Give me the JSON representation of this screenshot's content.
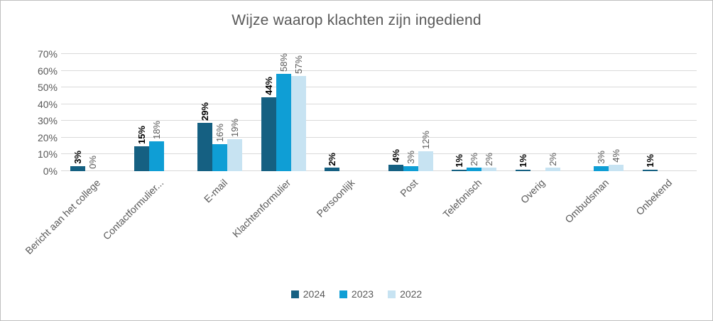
{
  "title": "Wijze waarop klachten zijn ingediend",
  "colors": {
    "series_2024": "#156082",
    "series_2023": "#0F9ED5",
    "series_2022": "#C7E3F2",
    "gridline": "#D9D9D9",
    "axis_text": "#595959",
    "label_2024": "#000000",
    "label_other": "#595959"
  },
  "chart_data": {
    "type": "bar",
    "title": "Wijze waarop klachten zijn ingediend",
    "categories": [
      "Bericht aan het college",
      "Contactformulier...",
      "E-mail",
      "Klachtenformulier",
      "Persoonlijk",
      "Post",
      "Telefonisch",
      "Overig",
      "Ombudsman",
      "Onbekend"
    ],
    "series": [
      {
        "name": "2024",
        "color": "#156082",
        "values": [
          3,
          15,
          29,
          44,
          2,
          4,
          1,
          1,
          null,
          1
        ],
        "labels": [
          "3%",
          "15%",
          "29%",
          "44%",
          "2%",
          "4%",
          "1%",
          "1%",
          null,
          "1%"
        ],
        "label_bold": true
      },
      {
        "name": "2023",
        "color": "#0F9ED5",
        "values": [
          0,
          18,
          16,
          58,
          null,
          3,
          2,
          null,
          3,
          null
        ],
        "labels": [
          "0%",
          "18%",
          "16%",
          "58%",
          null,
          "3%",
          "2%",
          null,
          "3%",
          null
        ],
        "label_bold": false
      },
      {
        "name": "2022",
        "color": "#C7E3F2",
        "values": [
          null,
          null,
          19,
          57,
          null,
          12,
          2,
          2,
          4,
          null
        ],
        "labels": [
          null,
          null,
          "19%",
          "57%",
          null,
          "12%",
          "2%",
          "2%",
          "4%",
          null
        ],
        "label_bold": false
      }
    ],
    "y_ticks": [
      "0%",
      "10%",
      "20%",
      "30%",
      "40%",
      "50%",
      "60%",
      "70%"
    ],
    "ylim": [
      0,
      70
    ],
    "grid": true,
    "legend_position": "bottom"
  }
}
